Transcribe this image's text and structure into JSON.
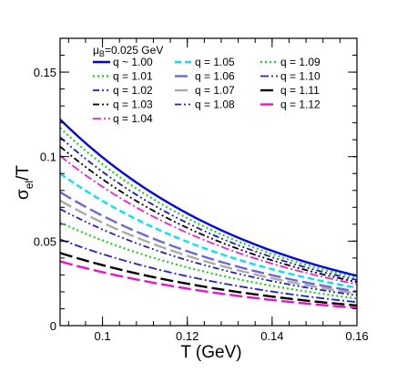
{
  "chart_data": {
    "type": "line",
    "xlabel": "T (GeV)",
    "ylabel_main": "σ",
    "ylabel_sub": "el",
    "ylabel_tail": "/T",
    "xlim": [
      0.09,
      0.16
    ],
    "ylim": [
      0,
      0.17
    ],
    "xticks": [
      0.1,
      0.12,
      0.14,
      0.16
    ],
    "xtick_labels": [
      "0.1",
      "0.12",
      "0.14",
      "0.16"
    ],
    "yticks": [
      0,
      0.05,
      0.1,
      0.15
    ],
    "ytick_labels": [
      "0",
      "0.05",
      "0.1",
      "0.15"
    ],
    "grid": false,
    "legend_placement": "top",
    "legend_header": {
      "main": "μ",
      "sub": "B",
      "tail": "=0.025 GeV"
    },
    "x": [
      0.09,
      0.1,
      0.11,
      0.12,
      0.13,
      0.14,
      0.15,
      0.16
    ],
    "series": [
      {
        "name": "q ~ 1.00",
        "color": "#0000ee",
        "dash": "solid",
        "width": 2.4,
        "values": [
          0.122,
          0.096,
          0.077,
          0.062,
          0.05,
          0.0415,
          0.035,
          0.0295
        ]
      },
      {
        "name": "q = 1.01",
        "color": "#22cc22",
        "dash": "dot",
        "width": 2.2,
        "values": [
          0.117,
          0.0925,
          0.0745,
          0.06,
          0.0485,
          0.04,
          0.0335,
          0.0282
        ]
      },
      {
        "name": "q = 1.02",
        "color": "#1a1aaa",
        "dash": "dashdotdot",
        "width": 1.8,
        "values": [
          0.1115,
          0.0885,
          0.0715,
          0.0575,
          0.0465,
          0.0385,
          0.0322,
          0.027
        ]
      },
      {
        "name": "q = 1.03",
        "color": "#000000",
        "dash": "dashdotdot",
        "width": 1.8,
        "values": [
          0.106,
          0.0845,
          0.0682,
          0.055,
          0.0445,
          0.0368,
          0.0308,
          0.0258
        ]
      },
      {
        "name": "q = 1.04",
        "color": "#ee22cc",
        "dash": "dashdot",
        "width": 1.8,
        "values": [
          0.1005,
          0.08,
          0.0648,
          0.0522,
          0.0423,
          0.035,
          0.0293,
          0.0245
        ]
      },
      {
        "name": "q = 1.05",
        "color": "#00e5ee",
        "dash": "dash",
        "width": 2.4,
        "values": [
          0.09,
          0.0725,
          0.0588,
          0.0476,
          0.0386,
          0.032,
          0.0267,
          0.0224
        ]
      },
      {
        "name": "q = 1.06",
        "color": "#6a6ad0",
        "dash": "longdash",
        "width": 2.4,
        "values": [
          0.079,
          0.064,
          0.0522,
          0.0424,
          0.0346,
          0.0287,
          0.024,
          0.0202
        ]
      },
      {
        "name": "q = 1.07",
        "color": "#aaaaaa",
        "dash": "longdash",
        "width": 2.4,
        "values": [
          0.074,
          0.06,
          0.049,
          0.0398,
          0.0325,
          0.027,
          0.0226,
          0.019
        ]
      },
      {
        "name": "q = 1.08",
        "color": "#2222bb",
        "dash": "dashdotdot",
        "width": 1.8,
        "values": [
          0.069,
          0.0562,
          0.046,
          0.0375,
          0.0306,
          0.0254,
          0.0213,
          0.0179
        ]
      },
      {
        "name": "q = 1.09",
        "color": "#22cc22",
        "dash": "dot",
        "width": 2.2,
        "values": [
          0.061,
          0.05,
          0.041,
          0.0335,
          0.0275,
          0.0228,
          0.0191,
          0.0161
        ]
      },
      {
        "name": "q = 1.10",
        "color": "#2222cc",
        "dash": "dashdot",
        "width": 1.8,
        "values": [
          0.051,
          0.0422,
          0.0348,
          0.0286,
          0.0235,
          0.0196,
          0.0165,
          0.0139
        ]
      },
      {
        "name": "q = 1.11",
        "color": "#000000",
        "dash": "longdash",
        "width": 2.4,
        "values": [
          0.043,
          0.0356,
          0.0295,
          0.0244,
          0.0201,
          0.0168,
          0.0141,
          0.0119
        ]
      },
      {
        "name": "q = 1.12",
        "color": "#ee11cc",
        "dash": "longdash",
        "width": 2.4,
        "values": [
          0.038,
          0.0316,
          0.0262,
          0.0216,
          0.0179,
          0.0149,
          0.0125,
          0.0105
        ]
      }
    ]
  }
}
